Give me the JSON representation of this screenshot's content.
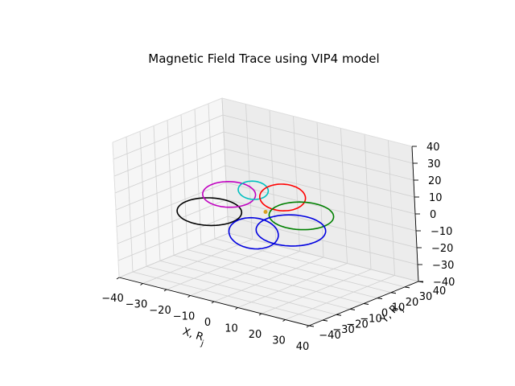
{
  "chart_data": {
    "type": "line3d",
    "title": "Magnetic Field Trace using VIP4 model",
    "xlabel": "X, R_j",
    "ylabel": "Y, R_j",
    "zlabel": "",
    "xlim": [
      -40,
      40
    ],
    "ylim": [
      -40,
      40
    ],
    "zlim": [
      -40,
      40
    ],
    "x_ticks": [
      -40,
      -30,
      -20,
      -10,
      0,
      10,
      20,
      30,
      40
    ],
    "y_ticks": [
      -30,
      -20,
      -10,
      0,
      10,
      20,
      30,
      40
    ],
    "y_ticks_extra": [
      -40
    ],
    "z_ticks": [
      -40,
      -30,
      -20,
      -10,
      0,
      10,
      20,
      30,
      40
    ],
    "grid": true,
    "legend": "none",
    "center_marker_color": "#d9a020",
    "series": [
      {
        "color": "#000000",
        "center": [
          -18,
          -10,
          -3
        ],
        "radius": 12,
        "tilt": 0.35
      },
      {
        "color": "#c000c0",
        "center": [
          -14,
          -2,
          6
        ],
        "radius": 10,
        "tilt": 0.5
      },
      {
        "color": "#0000e0",
        "center": [
          4,
          -16,
          -6
        ],
        "radius": 10,
        "tilt": 1.0
      },
      {
        "color": "#00bfbf",
        "center": [
          -6,
          2,
          10
        ],
        "radius": 6,
        "tilt": 0.9
      },
      {
        "color": "#ff0000",
        "center": [
          4,
          6,
          8
        ],
        "radius": 9,
        "tilt": 0.8
      },
      {
        "color": "#008000",
        "center": [
          14,
          2,
          2
        ],
        "radius": 12,
        "tilt": 0.35
      },
      {
        "color": "#0000e0",
        "center": [
          14,
          -6,
          -4
        ],
        "radius": 13,
        "tilt": 0.4
      }
    ]
  }
}
